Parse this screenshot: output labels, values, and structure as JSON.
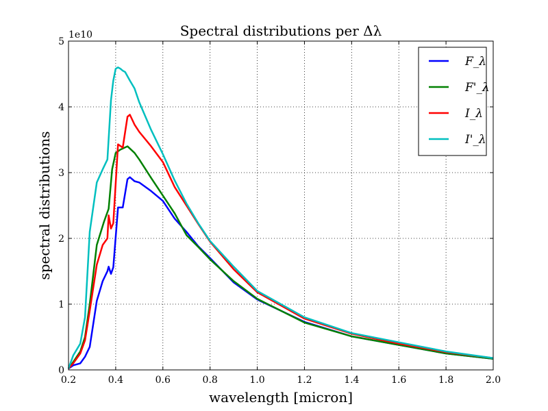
{
  "chart_data": {
    "type": "line",
    "title": "Spectral distributions per Δλ",
    "xlabel": "wavelength [micron]",
    "ylabel": "spectral distributions",
    "y_multiplier": "1e10",
    "xlim": [
      0.2,
      2.0
    ],
    "ylim": [
      0,
      5
    ],
    "x_ticks": [
      0.2,
      0.4,
      0.6,
      0.8,
      1.0,
      1.2,
      1.4,
      1.6,
      1.8,
      2.0
    ],
    "x_tick_labels": [
      "0.2",
      "0.4",
      "0.6",
      "0.8",
      "1.0",
      "1.2",
      "1.4",
      "1.6",
      "1.8",
      "2.0"
    ],
    "y_ticks": [
      0,
      1,
      2,
      3,
      4,
      5
    ],
    "y_tick_labels": [
      "0",
      "1",
      "2",
      "3",
      "4",
      "5"
    ],
    "grid": true,
    "legend_position": "top-right",
    "series": [
      {
        "name": "F_λ",
        "color": "#0000ff",
        "x": [
          0.2,
          0.22,
          0.25,
          0.27,
          0.29,
          0.32,
          0.345,
          0.365,
          0.37,
          0.38,
          0.39,
          0.41,
          0.43,
          0.45,
          0.46,
          0.48,
          0.5,
          0.55,
          0.6,
          0.65,
          0.7,
          0.75,
          0.8,
          0.9,
          1.0,
          1.2,
          1.4,
          1.6,
          1.8,
          2.0
        ],
        "y": [
          0.02,
          0.07,
          0.1,
          0.2,
          0.35,
          1.05,
          1.35,
          1.5,
          1.57,
          1.46,
          1.56,
          2.47,
          2.47,
          2.9,
          2.93,
          2.87,
          2.85,
          2.72,
          2.57,
          2.3,
          2.1,
          1.88,
          1.7,
          1.33,
          1.07,
          0.73,
          0.51,
          0.38,
          0.25,
          0.17
        ]
      },
      {
        "name": "F'_λ",
        "color": "#008000",
        "x": [
          0.2,
          0.22,
          0.25,
          0.27,
          0.29,
          0.32,
          0.35,
          0.37,
          0.385,
          0.4,
          0.42,
          0.45,
          0.48,
          0.5,
          0.55,
          0.6,
          0.65,
          0.7,
          0.75,
          0.8,
          0.9,
          1.0,
          1.2,
          1.4,
          1.6,
          1.8,
          2.0
        ],
        "y": [
          0.02,
          0.12,
          0.28,
          0.5,
          1.0,
          1.9,
          2.25,
          2.45,
          3.05,
          3.3,
          3.35,
          3.4,
          3.3,
          3.2,
          2.92,
          2.65,
          2.38,
          2.05,
          1.87,
          1.68,
          1.35,
          1.08,
          0.72,
          0.51,
          0.38,
          0.25,
          0.17
        ]
      },
      {
        "name": "I_λ",
        "color": "#ff0000",
        "x": [
          0.2,
          0.22,
          0.25,
          0.27,
          0.29,
          0.32,
          0.345,
          0.365,
          0.37,
          0.38,
          0.39,
          0.41,
          0.43,
          0.45,
          0.46,
          0.48,
          0.5,
          0.55,
          0.6,
          0.65,
          0.7,
          0.75,
          0.8,
          0.9,
          1.0,
          1.2,
          1.4,
          1.6,
          1.8,
          2.0
        ],
        "y": [
          0.02,
          0.1,
          0.25,
          0.45,
          0.9,
          1.6,
          1.9,
          2.0,
          2.35,
          2.15,
          2.23,
          3.43,
          3.38,
          3.85,
          3.88,
          3.73,
          3.62,
          3.4,
          3.16,
          2.78,
          2.5,
          2.22,
          1.95,
          1.53,
          1.18,
          0.78,
          0.55,
          0.4,
          0.27,
          0.18
        ]
      },
      {
        "name": "I'_λ",
        "color": "#00bfbf",
        "x": [
          0.2,
          0.22,
          0.25,
          0.27,
          0.29,
          0.32,
          0.345,
          0.365,
          0.38,
          0.39,
          0.4,
          0.41,
          0.42,
          0.43,
          0.44,
          0.46,
          0.48,
          0.5,
          0.55,
          0.6,
          0.65,
          0.7,
          0.75,
          0.8,
          0.9,
          1.0,
          1.2,
          1.4,
          1.6,
          1.8,
          2.0
        ],
        "y": [
          0.02,
          0.22,
          0.4,
          0.8,
          2.1,
          2.85,
          3.05,
          3.2,
          4.1,
          4.4,
          4.58,
          4.6,
          4.58,
          4.55,
          4.53,
          4.4,
          4.28,
          4.07,
          3.65,
          3.28,
          2.88,
          2.53,
          2.23,
          1.96,
          1.57,
          1.2,
          0.8,
          0.56,
          0.42,
          0.28,
          0.18
        ]
      }
    ]
  }
}
